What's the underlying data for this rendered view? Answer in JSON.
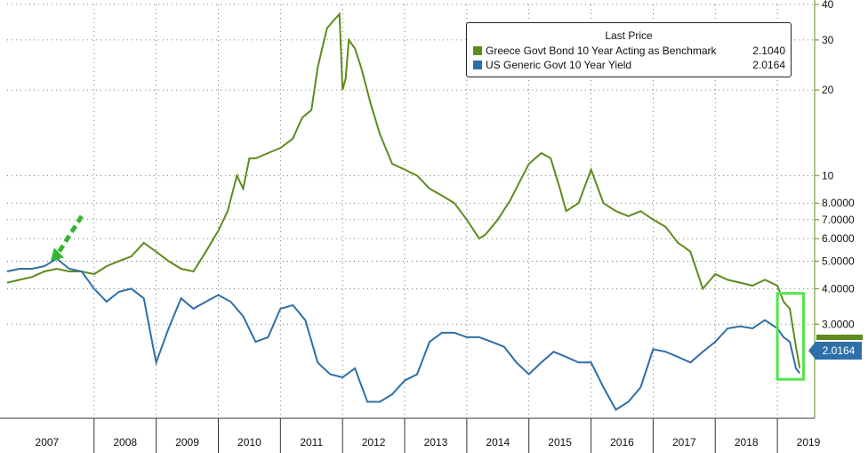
{
  "chart_data": {
    "type": "line",
    "xlabel": "",
    "ylabel": "",
    "y_scale": "log",
    "grid": true,
    "legend_position": "top-right",
    "ylim": [
      1.4,
      40
    ],
    "x_ticks": [
      "2007",
      "2008",
      "2009",
      "2010",
      "2011",
      "2012",
      "2013",
      "2014",
      "2015",
      "2016",
      "2017",
      "2018",
      "2019"
    ],
    "y_ticks": [
      {
        "value": 40,
        "label": "40"
      },
      {
        "value": 30,
        "label": "30"
      },
      {
        "value": 20,
        "label": "20"
      },
      {
        "value": 10,
        "label": "10"
      },
      {
        "value": 8,
        "label": "8.0000"
      },
      {
        "value": 7,
        "label": "7.0000"
      },
      {
        "value": 6,
        "label": "6.0000"
      },
      {
        "value": 5,
        "label": "5.0000"
      },
      {
        "value": 4,
        "label": "4.0000"
      },
      {
        "value": 3,
        "label": "3.0000"
      }
    ],
    "legend_title": "Last Price",
    "series": [
      {
        "name": "Greece Govt Bond 10 Year Acting as Benchmark",
        "last": "2.1040",
        "color": "#5e8b1c",
        "x": [
          2006.6,
          2006.8,
          2007.0,
          2007.2,
          2007.4,
          2007.6,
          2007.8,
          2008.0,
          2008.2,
          2008.4,
          2008.6,
          2008.8,
          2009.0,
          2009.2,
          2009.4,
          2009.6,
          2009.8,
          2010.0,
          2010.15,
          2010.3,
          2010.4,
          2010.5,
          2010.6,
          2010.8,
          2011.0,
          2011.2,
          2011.35,
          2011.5,
          2011.6,
          2011.75,
          2011.85,
          2011.95,
          2012.0,
          2012.05,
          2012.1,
          2012.2,
          2012.3,
          2012.45,
          2012.6,
          2012.8,
          2013.0,
          2013.2,
          2013.4,
          2013.6,
          2013.8,
          2014.0,
          2014.2,
          2014.3,
          2014.5,
          2014.7,
          2014.85,
          2015.0,
          2015.2,
          2015.35,
          2015.5,
          2015.6,
          2015.8,
          2016.0,
          2016.2,
          2016.4,
          2016.6,
          2016.8,
          2017.0,
          2017.2,
          2017.4,
          2017.5,
          2017.6,
          2017.8,
          2018.0,
          2018.2,
          2018.4,
          2018.6,
          2018.8,
          2019.0,
          2019.1,
          2019.2,
          2019.3,
          2019.36
        ],
        "y": [
          4.2,
          4.3,
          4.4,
          4.6,
          4.7,
          4.6,
          4.6,
          4.5,
          4.8,
          5.0,
          5.2,
          5.8,
          5.4,
          5.0,
          4.7,
          4.6,
          5.4,
          6.4,
          7.5,
          10.0,
          9.0,
          11.5,
          11.5,
          12.0,
          12.5,
          13.5,
          16.0,
          17.0,
          24.0,
          33.0,
          35.0,
          37.0,
          20.0,
          22.0,
          30.0,
          28.0,
          24.0,
          18.0,
          14.0,
          11.0,
          10.5,
          10.0,
          9.0,
          8.5,
          8.0,
          7.0,
          6.0,
          6.2,
          7.0,
          8.2,
          9.5,
          11.0,
          12.0,
          11.5,
          9.0,
          7.5,
          8.0,
          10.5,
          8.0,
          7.5,
          7.2,
          7.5,
          7.0,
          6.6,
          5.8,
          5.6,
          5.4,
          4.0,
          4.5,
          4.3,
          4.2,
          4.1,
          4.3,
          4.1,
          3.6,
          3.4,
          2.5,
          2.104
        ]
      },
      {
        "name": "US Generic Govt 10 Year Yield",
        "last": "2.0164",
        "color": "#2f6fa8",
        "x": [
          2006.6,
          2006.8,
          2007.0,
          2007.2,
          2007.4,
          2007.6,
          2007.8,
          2008.0,
          2008.2,
          2008.4,
          2008.6,
          2008.8,
          2008.95,
          2009.0,
          2009.2,
          2009.4,
          2009.6,
          2009.8,
          2010.0,
          2010.2,
          2010.4,
          2010.6,
          2010.8,
          2011.0,
          2011.2,
          2011.4,
          2011.6,
          2011.8,
          2012.0,
          2012.2,
          2012.4,
          2012.6,
          2012.8,
          2013.0,
          2013.2,
          2013.4,
          2013.6,
          2013.8,
          2014.0,
          2014.2,
          2014.4,
          2014.6,
          2014.8,
          2015.0,
          2015.2,
          2015.4,
          2015.6,
          2015.8,
          2016.0,
          2016.2,
          2016.4,
          2016.6,
          2016.8,
          2017.0,
          2017.2,
          2017.4,
          2017.6,
          2017.8,
          2018.0,
          2018.2,
          2018.4,
          2018.6,
          2018.8,
          2019.0,
          2019.1,
          2019.2,
          2019.3,
          2019.36
        ],
        "y": [
          4.6,
          4.7,
          4.7,
          4.8,
          5.1,
          4.7,
          4.6,
          4.0,
          3.6,
          3.9,
          4.0,
          3.7,
          2.5,
          2.2,
          2.9,
          3.7,
          3.4,
          3.6,
          3.8,
          3.6,
          3.2,
          2.6,
          2.7,
          3.4,
          3.5,
          3.1,
          2.2,
          2.0,
          1.95,
          2.1,
          1.6,
          1.6,
          1.7,
          1.9,
          2.0,
          2.6,
          2.8,
          2.8,
          2.7,
          2.7,
          2.6,
          2.5,
          2.2,
          2.0,
          2.2,
          2.4,
          2.3,
          2.2,
          2.2,
          1.8,
          1.5,
          1.6,
          1.8,
          2.45,
          2.4,
          2.3,
          2.2,
          2.4,
          2.6,
          2.9,
          2.95,
          2.9,
          3.1,
          2.9,
          2.7,
          2.6,
          2.1,
          2.0164
        ]
      }
    ]
  },
  "end_label": "2.0164"
}
